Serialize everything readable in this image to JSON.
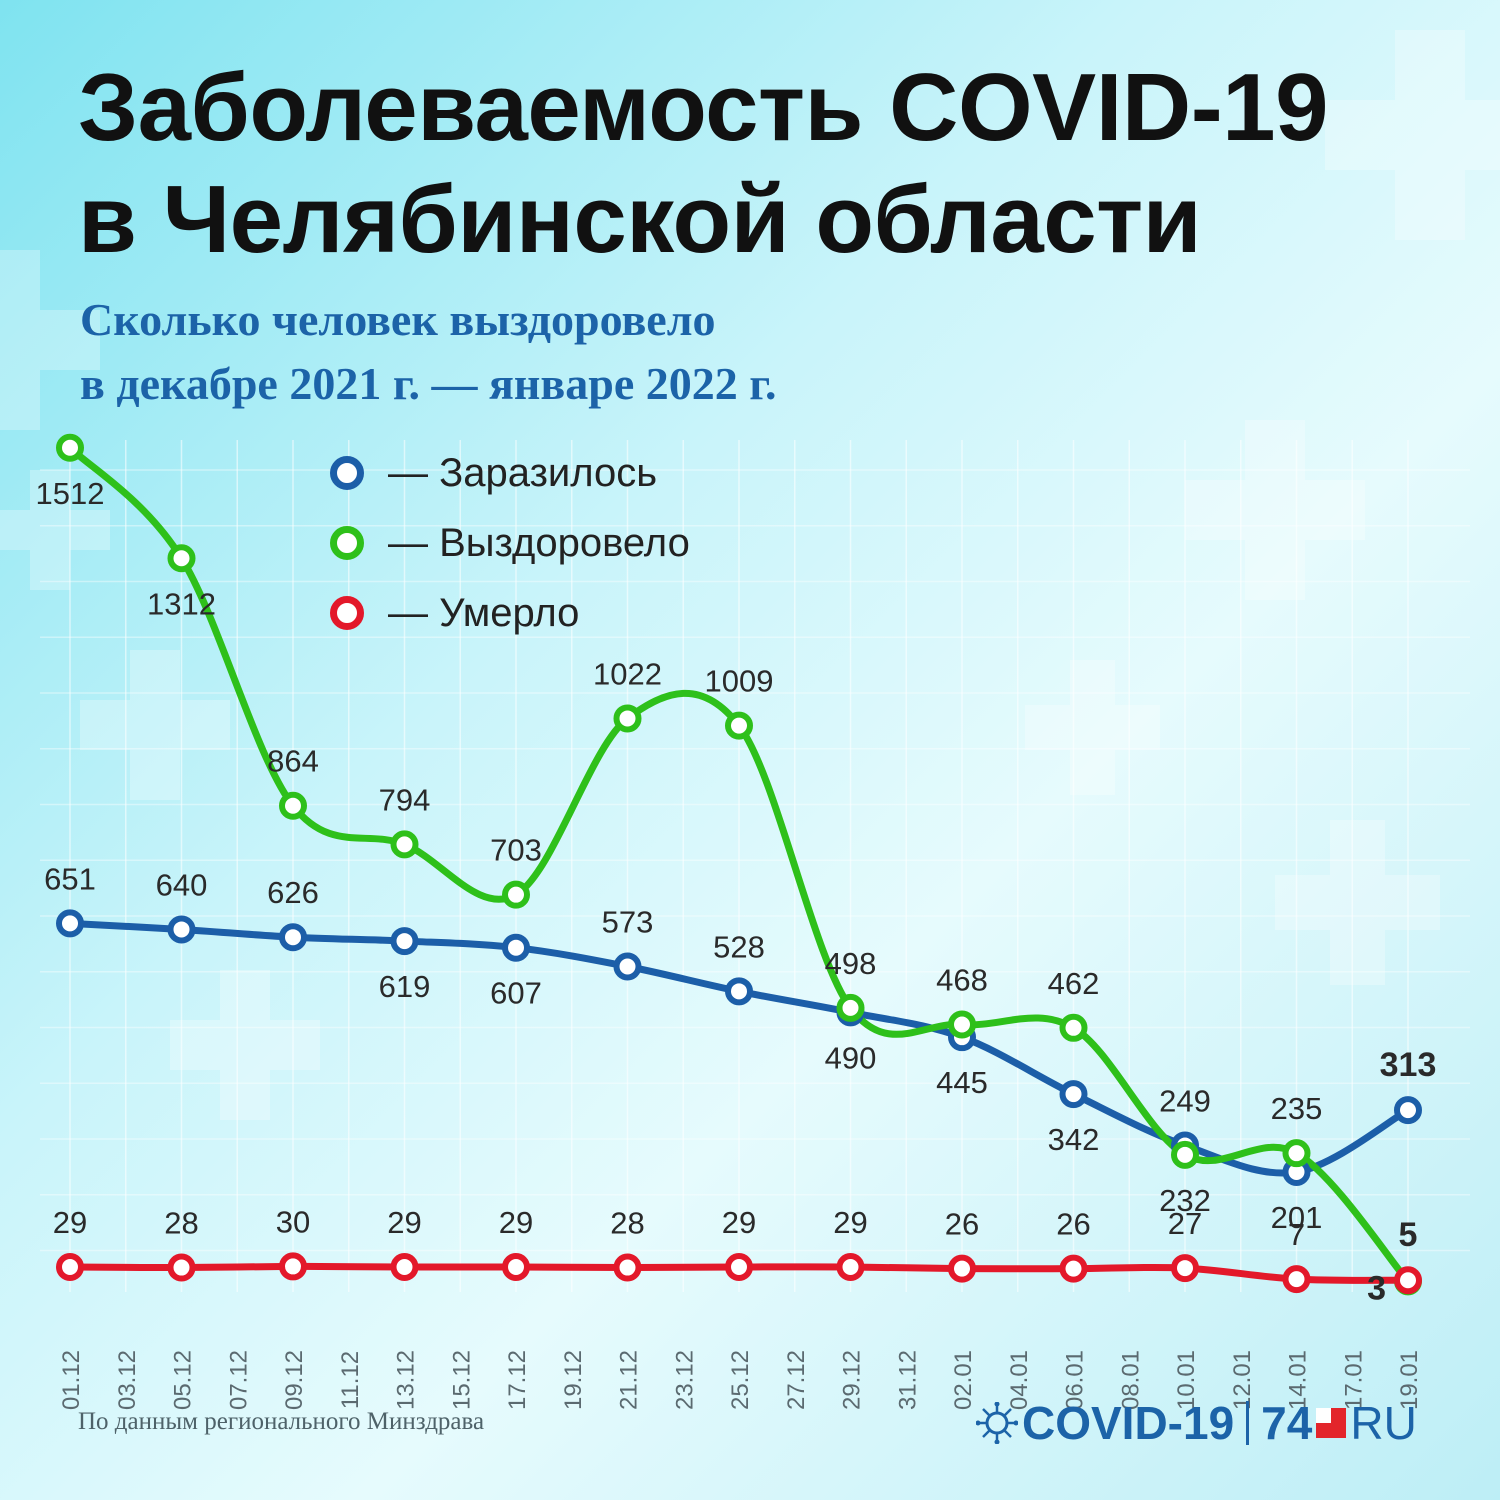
{
  "title": {
    "line1": "Заболеваемость COVID-19",
    "line2": "в Челябинской области"
  },
  "subtitle": {
    "line1": "Сколько человек выздоровело",
    "line2": "в декабре 2021 г. — январе 2022 г."
  },
  "legend": [
    {
      "label": "— Заразилось",
      "color": "#1c5ea8"
    },
    {
      "label": "— Выздоровело",
      "color": "#2ec01a"
    },
    {
      "label": "— Умерло",
      "color": "#e3182a"
    }
  ],
  "chart_data": {
    "type": "line",
    "x": [
      "01.12",
      "03.12",
      "05.12",
      "07.12",
      "09.12",
      "11.12",
      "13.12",
      "15.12",
      "17.12",
      "19.12",
      "21.12",
      "23.12",
      "25.12",
      "27.12",
      "29.12",
      "31.12",
      "02.01",
      "04.01",
      "06.01",
      "08.01",
      "10.01",
      "12.01",
      "14.01",
      "17.01",
      "19.01"
    ],
    "grid": true,
    "series": [
      {
        "name": "Заразилось",
        "color": "#1c5ea8",
        "x": [
          "01.12",
          "05.12",
          "09.12",
          "13.12",
          "17.12",
          "21.12",
          "25.12",
          "29.12",
          "02.01",
          "06.01",
          "10.01",
          "14.01",
          "19.01"
        ],
        "values": [
          651,
          640,
          626,
          619,
          607,
          573,
          528,
          490,
          445,
          342,
          249,
          201,
          313
        ],
        "labels": [
          "651",
          "640",
          "626",
          "619",
          "607",
          "573",
          "528",
          "490",
          "445",
          "342",
          "249",
          "201",
          "313"
        ]
      },
      {
        "name": "Выздоровело",
        "color": "#2ec01a",
        "x": [
          "01.12",
          "05.12",
          "09.12",
          "13.12",
          "17.12",
          "21.12",
          "25.12",
          "29.12",
          "02.01",
          "06.01",
          "10.01",
          "14.01",
          "19.01"
        ],
        "values": [
          1512,
          1312,
          864,
          794,
          703,
          1022,
          1009,
          498,
          468,
          462,
          232,
          235,
          3
        ],
        "labels": [
          "1512",
          "1312",
          "864",
          "794",
          "703",
          "1022",
          "1009",
          "498",
          "468",
          "462",
          "232",
          "235",
          "3"
        ]
      },
      {
        "name": "Умерло",
        "color": "#e3182a",
        "x": [
          "01.12",
          "05.12",
          "09.12",
          "13.12",
          "17.12",
          "21.12",
          "25.12",
          "29.12",
          "02.01",
          "06.01",
          "10.01",
          "14.01",
          "19.01"
        ],
        "values": [
          29,
          28,
          30,
          29,
          29,
          28,
          29,
          29,
          26,
          26,
          27,
          7,
          5
        ],
        "labels": [
          "29",
          "28",
          "30",
          "29",
          "29",
          "28",
          "29",
          "29",
          "26",
          "26",
          "27",
          "7",
          "5"
        ]
      }
    ]
  },
  "footer": {
    "source": "По данным регионального Минздрава",
    "brand_covid": "COVID-19",
    "brand_num": "74",
    "brand_ru": "RU"
  }
}
